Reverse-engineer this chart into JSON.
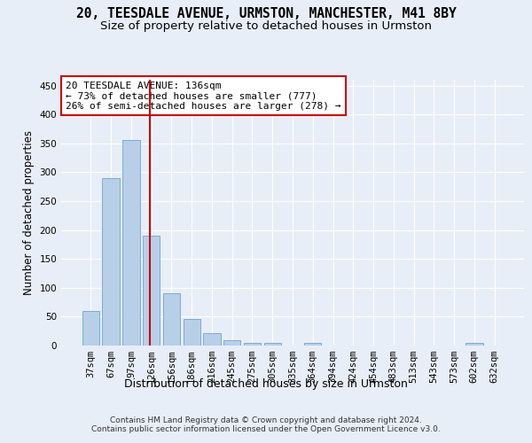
{
  "title": "20, TEESDALE AVENUE, URMSTON, MANCHESTER, M41 8BY",
  "subtitle": "Size of property relative to detached houses in Urmston",
  "xlabel": "Distribution of detached houses by size in Urmston",
  "ylabel": "Number of detached properties",
  "categories": [
    "37sqm",
    "67sqm",
    "97sqm",
    "126sqm",
    "156sqm",
    "186sqm",
    "216sqm",
    "245sqm",
    "275sqm",
    "305sqm",
    "335sqm",
    "364sqm",
    "394sqm",
    "424sqm",
    "454sqm",
    "483sqm",
    "513sqm",
    "543sqm",
    "573sqm",
    "602sqm",
    "632sqm"
  ],
  "values": [
    60,
    290,
    355,
    190,
    90,
    46,
    22,
    9,
    5,
    4,
    0,
    4,
    0,
    0,
    0,
    0,
    0,
    0,
    0,
    4,
    0
  ],
  "bar_color": "#b8cfe8",
  "bar_edge_color": "#7aadd4",
  "property_line_color": "#cc0000",
  "property_line_x": 2.925,
  "annotation_text": "20 TEESDALE AVENUE: 136sqm\n← 73% of detached houses are smaller (777)\n26% of semi-detached houses are larger (278) →",
  "annotation_box_facecolor": "#ffffff",
  "annotation_box_edgecolor": "#cc0000",
  "ylim": [
    0,
    460
  ],
  "yticks": [
    0,
    50,
    100,
    150,
    200,
    250,
    300,
    350,
    400,
    450
  ],
  "footer": "Contains HM Land Registry data © Crown copyright and database right 2024.\nContains public sector information licensed under the Open Government Licence v3.0.",
  "background_color": "#e8eef8",
  "grid_color": "#ffffff",
  "title_fontsize": 10.5,
  "subtitle_fontsize": 9.5,
  "xlabel_fontsize": 9,
  "ylabel_fontsize": 8.5,
  "tick_fontsize": 7.5,
  "annotation_fontsize": 8,
  "footer_fontsize": 6.5
}
